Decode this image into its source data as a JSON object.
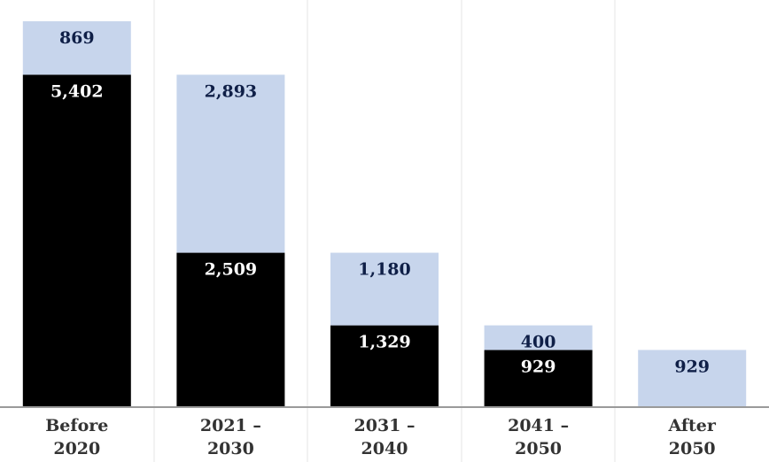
{
  "chart_data": {
    "type": "bar",
    "stacked": true,
    "categories": [
      [
        "Before",
        "2020"
      ],
      [
        "2021 –",
        "2030"
      ],
      [
        "2031 –",
        "2040"
      ],
      [
        "2041 –",
        "2050"
      ],
      [
        "After",
        "2050"
      ]
    ],
    "series": [
      {
        "values": [
          5402,
          2509,
          1329,
          929,
          0
        ],
        "color": "#000000",
        "label_color": "#ffffff"
      },
      {
        "values": [
          869,
          2893,
          1180,
          400,
          929
        ],
        "color": "#c7d5ec",
        "label_color": "#0f1f47"
      }
    ],
    "labels": [
      [
        "5,402",
        "2,509",
        "1,329",
        "929",
        ""
      ],
      [
        "869",
        "2,893",
        "1,180",
        "400",
        "929"
      ]
    ],
    "ylim": [
      0,
      6300
    ],
    "grid": "vertical separators",
    "title": "",
    "xlabel": "",
    "ylabel": ""
  }
}
